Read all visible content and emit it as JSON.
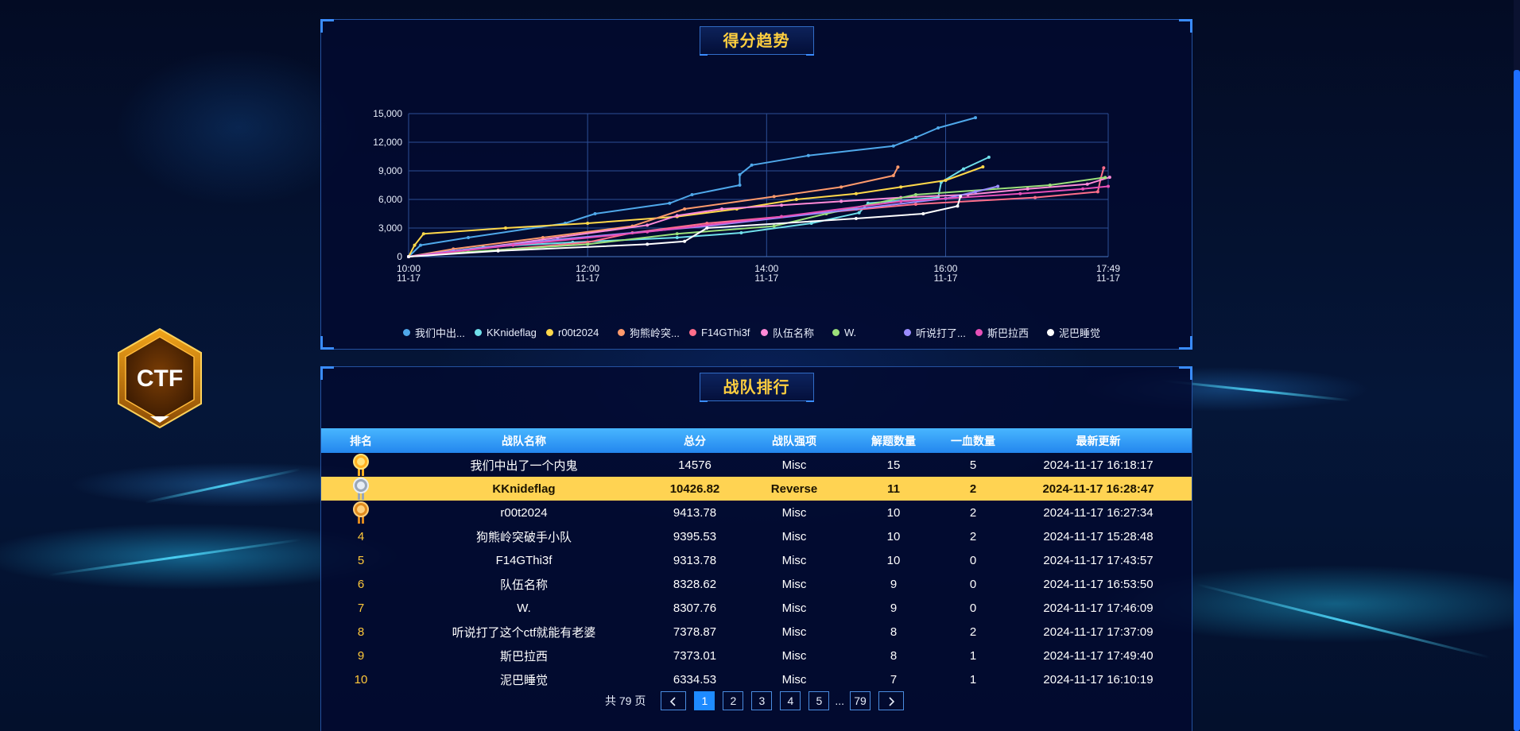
{
  "badge": {
    "text": "CTF"
  },
  "trend_panel": {
    "title": "得分趋势"
  },
  "ranking_panel": {
    "title": "战队排行"
  },
  "chart_data": {
    "type": "line",
    "title": "",
    "xlabel": "",
    "ylabel": "",
    "x_ticks": [
      {
        "time": "10:00",
        "date": "11-17"
      },
      {
        "time": "12:00",
        "date": "11-17"
      },
      {
        "time": "14:00",
        "date": "11-17"
      },
      {
        "time": "16:00",
        "date": "11-17"
      },
      {
        "time": "17:49",
        "date": "11-17"
      }
    ],
    "x_tick_minutes_from_start": [
      0,
      120,
      240,
      360,
      469
    ],
    "y_ticks": [
      "0",
      "3,000",
      "6,000",
      "9,000",
      "12,000",
      "15,000"
    ],
    "ylim": [
      0,
      15000
    ],
    "grid": true,
    "legend_position": "bottom",
    "series": [
      {
        "name": "我们中出...",
        "color": "#4fa8ea",
        "points": [
          [
            0,
            0
          ],
          [
            8,
            1200
          ],
          [
            40,
            2000
          ],
          [
            105,
            3500
          ],
          [
            125,
            4500
          ],
          [
            175,
            5600
          ],
          [
            190,
            6500
          ],
          [
            222,
            7500
          ],
          [
            222,
            8600
          ],
          [
            230,
            9600
          ],
          [
            268,
            10600
          ],
          [
            325,
            11600
          ],
          [
            340,
            12500
          ],
          [
            355,
            13500
          ],
          [
            380,
            14576
          ]
        ]
      },
      {
        "name": "KKnideflag",
        "color": "#6fdfea",
        "points": [
          [
            0,
            0
          ],
          [
            50,
            1000
          ],
          [
            110,
            1500
          ],
          [
            180,
            2000
          ],
          [
            223,
            2500
          ],
          [
            270,
            3500
          ],
          [
            302,
            4600
          ],
          [
            308,
            5600
          ],
          [
            355,
            6200
          ],
          [
            357,
            7800
          ],
          [
            372,
            9200
          ],
          [
            389,
            10426
          ]
        ]
      },
      {
        "name": "r00t2024",
        "color": "#ffd84a",
        "points": [
          [
            0,
            0
          ],
          [
            4,
            1200
          ],
          [
            10,
            2400
          ],
          [
            65,
            3000
          ],
          [
            120,
            3500
          ],
          [
            180,
            4200
          ],
          [
            220,
            5000
          ],
          [
            260,
            6000
          ],
          [
            300,
            6600
          ],
          [
            330,
            7300
          ],
          [
            360,
            8000
          ],
          [
            385,
            9413
          ]
        ]
      },
      {
        "name": "狗熊岭突...",
        "color": "#ff9a6c",
        "points": [
          [
            0,
            0
          ],
          [
            30,
            800
          ],
          [
            90,
            2000
          ],
          [
            150,
            3200
          ],
          [
            185,
            5000
          ],
          [
            245,
            6300
          ],
          [
            290,
            7300
          ],
          [
            325,
            8500
          ],
          [
            328,
            9395
          ]
        ]
      },
      {
        "name": "F14GThi3f",
        "color": "#ff6e8a",
        "points": [
          [
            0,
            0
          ],
          [
            60,
            700
          ],
          [
            120,
            1500
          ],
          [
            150,
            2500
          ],
          [
            200,
            3500
          ],
          [
            250,
            4200
          ],
          [
            340,
            5500
          ],
          [
            420,
            6200
          ],
          [
            462,
            6800
          ],
          [
            464,
            8200
          ],
          [
            466,
            9313
          ]
        ]
      },
      {
        "name": "队伍名称",
        "color": "#ff8ad8",
        "points": [
          [
            0,
            0
          ],
          [
            20,
            300
          ],
          [
            160,
            3300
          ],
          [
            180,
            4300
          ],
          [
            210,
            5000
          ],
          [
            250,
            5400
          ],
          [
            290,
            5800
          ],
          [
            330,
            6200
          ],
          [
            375,
            6500
          ],
          [
            415,
            7100
          ],
          [
            455,
            7600
          ],
          [
            470,
            8328
          ]
        ]
      },
      {
        "name": "W.",
        "color": "#9be07a",
        "points": [
          [
            0,
            0
          ],
          [
            40,
            500
          ],
          [
            120,
            1300
          ],
          [
            180,
            2400
          ],
          [
            245,
            3200
          ],
          [
            280,
            4500
          ],
          [
            340,
            6500
          ],
          [
            430,
            7500
          ],
          [
            467,
            8307
          ]
        ]
      },
      {
        "name": "听说打了...",
        "color": "#9a8cff",
        "points": [
          [
            0,
            0
          ],
          [
            30,
            600
          ],
          [
            100,
            1800
          ],
          [
            200,
            3200
          ],
          [
            300,
            5000
          ],
          [
            360,
            6100
          ],
          [
            380,
            6800
          ],
          [
            395,
            7378
          ]
        ]
      },
      {
        "name": "斯巴拉西",
        "color": "#e64fb7",
        "points": [
          [
            0,
            0
          ],
          [
            70,
            1200
          ],
          [
            160,
            2600
          ],
          [
            250,
            4200
          ],
          [
            330,
            5800
          ],
          [
            410,
            6600
          ],
          [
            452,
            7100
          ],
          [
            469,
            7373
          ]
        ]
      },
      {
        "name": "泥巴睡觉",
        "color": "#ffffff",
        "points": [
          [
            0,
            0
          ],
          [
            60,
            600
          ],
          [
            160,
            1300
          ],
          [
            185,
            1600
          ],
          [
            200,
            3000
          ],
          [
            300,
            4000
          ],
          [
            345,
            4500
          ],
          [
            368,
            5300
          ],
          [
            370,
            6334
          ]
        ]
      }
    ]
  },
  "table": {
    "headers": [
      "排名",
      "战队名称",
      "总分",
      "战队强项",
      "解题数量",
      "一血数量",
      "最新更新"
    ],
    "rows": [
      {
        "rank": "1",
        "medal": "gold-medal-icon",
        "name": "我们中出了一个内鬼",
        "score": "14576",
        "strength": "Misc",
        "solved": "15",
        "bloods": "5",
        "updated": "2024-11-17 16:18:17"
      },
      {
        "rank": "2",
        "medal": "silver-medal-icon",
        "name": "KKnideflag",
        "score": "10426.82",
        "strength": "Reverse",
        "solved": "11",
        "bloods": "2",
        "updated": "2024-11-17 16:28:47"
      },
      {
        "rank": "3",
        "medal": "bronze-medal-icon",
        "name": "r00t2024",
        "score": "9413.78",
        "strength": "Misc",
        "solved": "10",
        "bloods": "2",
        "updated": "2024-11-17 16:27:34"
      },
      {
        "rank": "4",
        "medal": "",
        "name": "狗熊岭突破手小队",
        "score": "9395.53",
        "strength": "Misc",
        "solved": "10",
        "bloods": "2",
        "updated": "2024-11-17 15:28:48"
      },
      {
        "rank": "5",
        "medal": "",
        "name": "F14GThi3f",
        "score": "9313.78",
        "strength": "Misc",
        "solved": "10",
        "bloods": "0",
        "updated": "2024-11-17 17:43:57"
      },
      {
        "rank": "6",
        "medal": "",
        "name": "队伍名称",
        "score": "8328.62",
        "strength": "Misc",
        "solved": "9",
        "bloods": "0",
        "updated": "2024-11-17 16:53:50"
      },
      {
        "rank": "7",
        "medal": "",
        "name": "W.",
        "score": "8307.76",
        "strength": "Misc",
        "solved": "9",
        "bloods": "0",
        "updated": "2024-11-17 17:46:09"
      },
      {
        "rank": "8",
        "medal": "",
        "name": "听说打了这个ctf就能有老婆",
        "score": "7378.87",
        "strength": "Misc",
        "solved": "8",
        "bloods": "2",
        "updated": "2024-11-17 17:37:09"
      },
      {
        "rank": "9",
        "medal": "",
        "name": "斯巴拉西",
        "score": "7373.01",
        "strength": "Misc",
        "solved": "8",
        "bloods": "1",
        "updated": "2024-11-17 17:49:40"
      },
      {
        "rank": "10",
        "medal": "",
        "name": "泥巴睡觉",
        "score": "6334.53",
        "strength": "Misc",
        "solved": "7",
        "bloods": "1",
        "updated": "2024-11-17 16:10:19"
      }
    ],
    "highlight_row": 1
  },
  "pagination": {
    "total_label": "共 79 页",
    "prev_icon": "chevron-left-icon",
    "next_icon": "chevron-right-icon",
    "pages": [
      "1",
      "2",
      "3",
      "4",
      "5"
    ],
    "ellipsis": "...",
    "last_page": "79",
    "current": "1"
  },
  "colors": {
    "accent": "#1e8bff",
    "title_gold": "#ffcf3f",
    "highlight": "#ffd352"
  }
}
